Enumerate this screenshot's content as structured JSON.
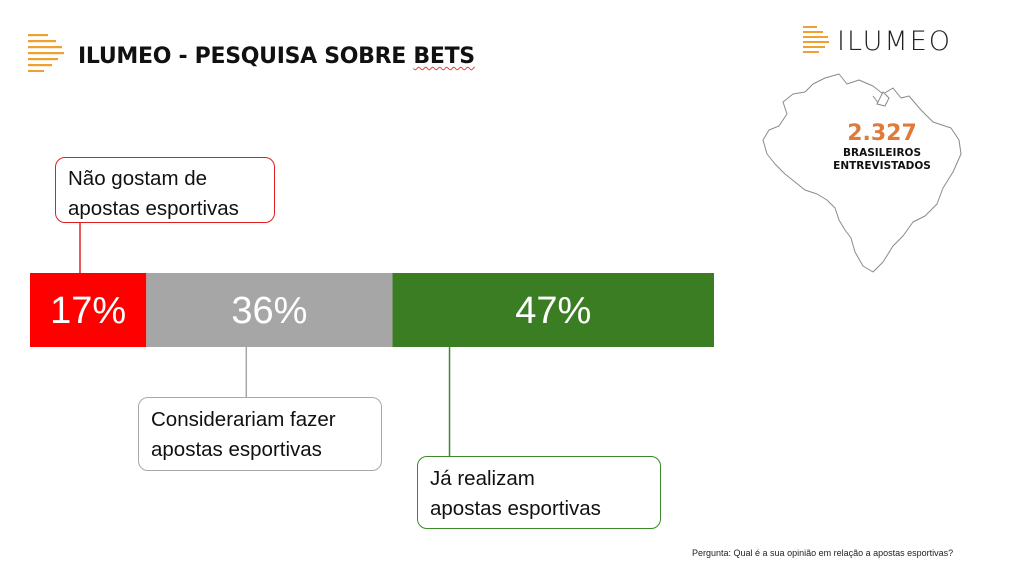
{
  "header": {
    "title_main": "ILUMEO - PESQUISA SOBRE ",
    "title_end": "BETS"
  },
  "brand": {
    "name": "ILUMEO",
    "accent_color": "#f0a030"
  },
  "stat": {
    "value": "2.327",
    "label_line1": "BRASILEIROS",
    "label_line2": "ENTREVISTADOS",
    "value_color": "#e07a3a"
  },
  "chart_data": {
    "type": "bar",
    "orientation": "horizontal-stacked-100",
    "series": [
      {
        "value": 17,
        "label": "17%",
        "color": "#ff0000",
        "callout_line1": "Não gostam de",
        "callout_line2": "apostas esportivas"
      },
      {
        "value": 36,
        "label": "36%",
        "color": "#a6a6a6",
        "callout_line1": "Considerariam fazer",
        "callout_line2": "apostas esportivas"
      },
      {
        "value": 47,
        "label": "47%",
        "color": "#3b7d23",
        "callout_line1": "Já realizam",
        "callout_line2": "apostas esportivas"
      }
    ],
    "total": 100
  },
  "footnote": "Pergunta: Qual é a sua opinião em relação a apostas esportivas?"
}
